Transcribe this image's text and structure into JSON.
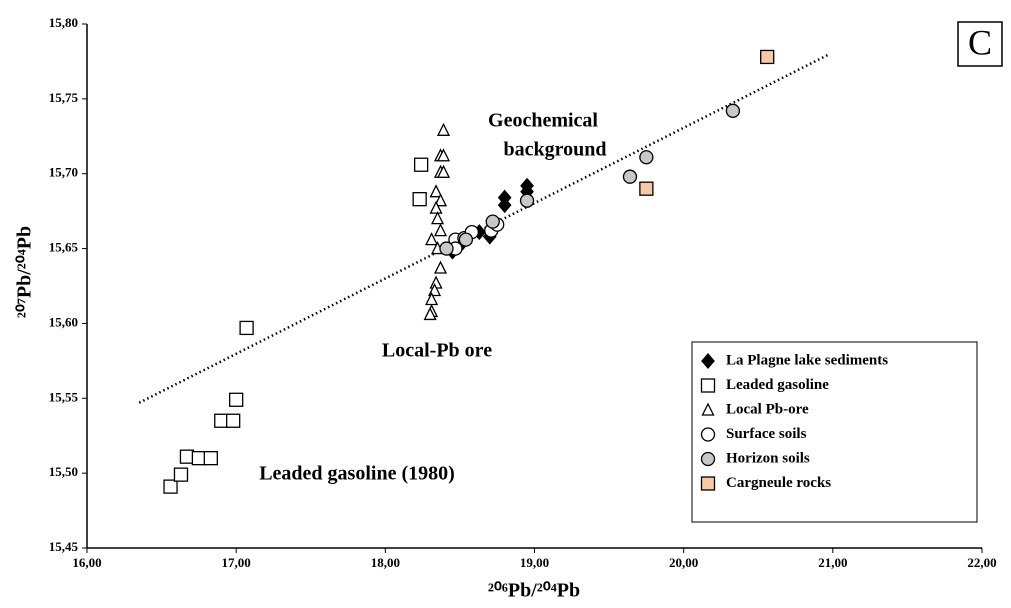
{
  "chart_data": {
    "type": "scatter",
    "x_label": "²⁰⁶Pb/²⁰⁴Pb",
    "y_label": "²⁰⁷Pb/²⁰⁴Pb",
    "panel_label": "C",
    "annotations": [
      "Geochemical",
      "background",
      "Local-Pb ore",
      "Leaded gasoline (1980)"
    ],
    "xlim": [
      16,
      22
    ],
    "ylim": [
      15.45,
      15.8
    ],
    "xticks": [
      {
        "value": 16,
        "label": "16,00"
      },
      {
        "value": 17,
        "label": "17,00"
      },
      {
        "value": 18,
        "label": "18,00"
      },
      {
        "value": 19,
        "label": "19,00"
      },
      {
        "value": 20,
        "label": "20,00"
      },
      {
        "value": 21,
        "label": "21,00"
      },
      {
        "value": 22,
        "label": "22,00"
      }
    ],
    "yticks": [
      {
        "value": 15.45,
        "label": "15,45"
      },
      {
        "value": 15.5,
        "label": "15,50"
      },
      {
        "value": 15.55,
        "label": "15,55"
      },
      {
        "value": 15.6,
        "label": "15,60"
      },
      {
        "value": 15.65,
        "label": "15,65"
      },
      {
        "value": 15.7,
        "label": "15,70"
      },
      {
        "value": 15.75,
        "label": "15,75"
      },
      {
        "value": 15.8,
        "label": "15,80"
      }
    ],
    "trend_line": {
      "x": [
        16.35,
        20.98
      ],
      "y": [
        15.547,
        15.78
      ]
    },
    "legend": "lower right",
    "series": [
      {
        "name": "La Plagne lake sediments",
        "marker": "diamond",
        "color": "#000000",
        "x": [
          18.45,
          18.5,
          18.63,
          18.7,
          18.8,
          18.8,
          18.95,
          18.95
        ],
        "y": [
          15.648,
          15.652,
          15.661,
          15.658,
          15.684,
          15.679,
          15.692,
          15.688
        ]
      },
      {
        "name": "Leaded gasoline",
        "marker": "square",
        "color": "#ffffff",
        "x": [
          16.56,
          16.63,
          16.67,
          16.75,
          16.83,
          16.9,
          16.98,
          17.0,
          17.07,
          18.24,
          18.23
        ],
        "y": [
          15.491,
          15.499,
          15.511,
          15.51,
          15.51,
          15.535,
          15.535,
          15.549,
          15.597,
          15.706,
          15.683
        ]
      },
      {
        "name": "Local Pb-ore",
        "marker": "triangle",
        "color": "#ffffff",
        "x": [
          18.39,
          18.37,
          18.39,
          18.37,
          18.39,
          18.34,
          18.37,
          18.34,
          18.35,
          18.37,
          18.31,
          18.35,
          18.37,
          18.34,
          18.33,
          18.31,
          18.31,
          18.3
        ],
        "y": [
          15.729,
          15.712,
          15.712,
          15.701,
          15.701,
          15.688,
          15.682,
          15.677,
          15.67,
          15.662,
          15.656,
          15.65,
          15.637,
          15.627,
          15.622,
          15.616,
          15.608,
          15.606
        ]
      },
      {
        "name": "Surface soils",
        "marker": "circle",
        "color": "#ffffff",
        "x": [
          18.47,
          18.53,
          18.58,
          18.71,
          18.75,
          18.47
        ],
        "y": [
          15.656,
          15.657,
          15.661,
          15.662,
          15.666,
          15.65
        ]
      },
      {
        "name": "Horizon soils",
        "marker": "circle",
        "color": "#c8c8c8",
        "x": [
          18.41,
          18.54,
          18.72,
          18.95,
          19.64,
          19.75,
          20.33
        ],
        "y": [
          15.65,
          15.656,
          15.668,
          15.682,
          15.698,
          15.711,
          15.742
        ]
      },
      {
        "name": "Cargneule rocks",
        "marker": "square",
        "color": "#f7c9a8",
        "x": [
          20.56,
          19.75
        ],
        "y": [
          15.778,
          15.69
        ]
      }
    ]
  }
}
